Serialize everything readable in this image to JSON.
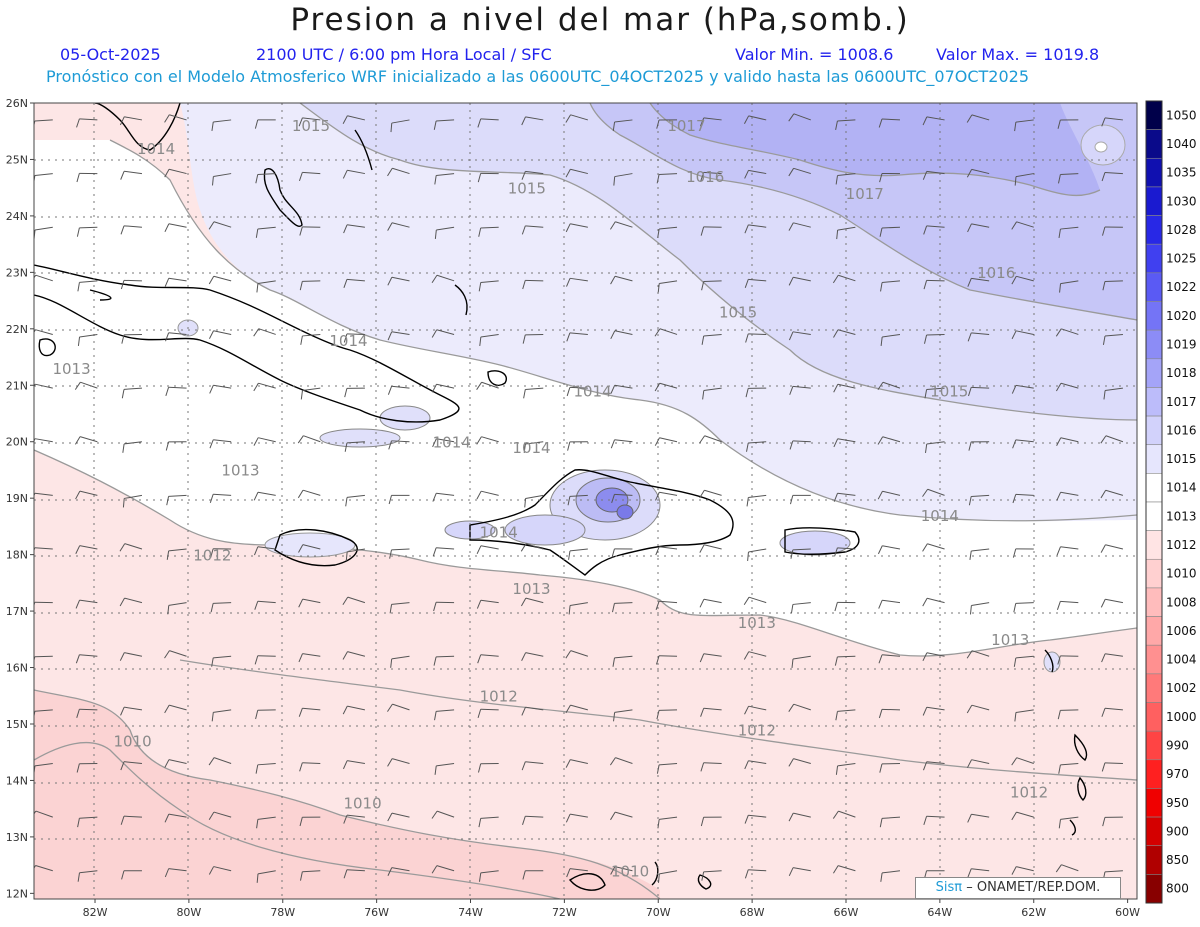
{
  "header": {
    "title": "Presion a nivel del mar (hPa,somb.)",
    "date": "05-Oct-2025",
    "time": "2100 UTC / 6:00 pm Hora Local / SFC",
    "min": "Valor Min. = 1008.6",
    "max": "Valor Max. = 1019.8",
    "info": "Pronóstico con el Modelo Atmosferico WRF inicializado a las 0600UTC_04OCT2025 y valido hasta las  0600UTC_07OCT2025"
  },
  "lat_labels": [
    "26N",
    "25N",
    "24N",
    "23N",
    "22N",
    "21N",
    "20N",
    "19N",
    "18N",
    "17N",
    "16N",
    "15N",
    "14N",
    "13N",
    "12N"
  ],
  "lon_labels": [
    "82W",
    "80W",
    "78W",
    "76W",
    "74W",
    "72W",
    "70W",
    "68W",
    "66W",
    "64W",
    "62W",
    "60W"
  ],
  "isobar_labels": [
    {
      "text": "1015",
      "lon": -77.4,
      "lat": 25.5
    },
    {
      "text": "1014",
      "lon": -80.7,
      "lat": 25.1
    },
    {
      "text": "1017",
      "lon": -69.4,
      "lat": 25.5
    },
    {
      "text": "1015",
      "lon": -72.8,
      "lat": 24.4
    },
    {
      "text": "1016",
      "lon": -69.0,
      "lat": 24.6
    },
    {
      "text": "1017",
      "lon": -65.6,
      "lat": 24.3
    },
    {
      "text": "1016",
      "lon": -62.8,
      "lat": 22.9
    },
    {
      "text": "1015",
      "lon": -68.3,
      "lat": 22.2
    },
    {
      "text": "1014",
      "lon": -76.6,
      "lat": 21.7
    },
    {
      "text": "1013",
      "lon": -82.5,
      "lat": 21.2
    },
    {
      "text": "1014",
      "lon": -71.4,
      "lat": 20.8
    },
    {
      "text": "1015",
      "lon": -63.8,
      "lat": 20.8
    },
    {
      "text": "1014",
      "lon": -74.4,
      "lat": 19.9
    },
    {
      "text": "1014",
      "lon": -72.7,
      "lat": 19.8
    },
    {
      "text": "1013",
      "lon": -78.9,
      "lat": 19.4
    },
    {
      "text": "1014",
      "lon": -64.0,
      "lat": 18.6
    },
    {
      "text": "1014",
      "lon": -73.4,
      "lat": 18.3
    },
    {
      "text": "1012",
      "lon": -79.5,
      "lat": 17.9
    },
    {
      "text": "1013",
      "lon": -72.7,
      "lat": 17.3
    },
    {
      "text": "1013",
      "lon": -67.9,
      "lat": 16.7
    },
    {
      "text": "1013",
      "lon": -62.5,
      "lat": 16.4
    },
    {
      "text": "1012",
      "lon": -73.4,
      "lat": 15.4
    },
    {
      "text": "1012",
      "lon": -67.9,
      "lat": 14.8
    },
    {
      "text": "1010",
      "lon": -81.2,
      "lat": 14.6
    },
    {
      "text": "1010",
      "lon": -76.3,
      "lat": 13.5
    },
    {
      "text": "1012",
      "lon": -62.1,
      "lat": 13.7
    },
    {
      "text": "1010",
      "lon": -70.6,
      "lat": 12.3
    }
  ],
  "colorbar": [
    "1050",
    "1040",
    "1035",
    "1030",
    "1028",
    "1025",
    "1022",
    "1020",
    "1019",
    "1018",
    "1017",
    "1016",
    "1015",
    "1014",
    "1013",
    "1012",
    "1010",
    "1008",
    "1006",
    "1004",
    "1002",
    "1000",
    "990",
    "970",
    "950",
    "900",
    "850",
    "800"
  ],
  "colorbar_colors": [
    "#00004a",
    "#0a0a8a",
    "#1010b0",
    "#1a1ad0",
    "#2828e6",
    "#4040f0",
    "#5a5af4",
    "#7474f6",
    "#8c8cf6",
    "#a4a4f8",
    "#bcbcfa",
    "#d2d2fb",
    "#e6e6fd",
    "#ffffff",
    "#ffffff",
    "#ffe4e4",
    "#ffd0d0",
    "#ffbcbc",
    "#ffa8a8",
    "#ff9090",
    "#ff7a7a",
    "#ff6060",
    "#ff4444",
    "#ff2020",
    "#f00000",
    "#d40000",
    "#b00000",
    "#880000"
  ],
  "credit": {
    "brand": "Sisπ",
    "rest": "– ONAMET/REP.DOM."
  }
}
